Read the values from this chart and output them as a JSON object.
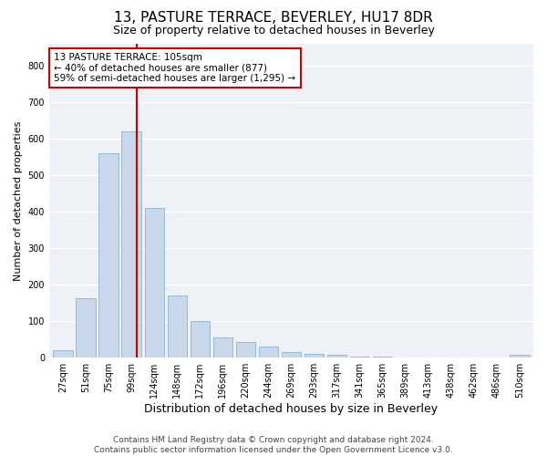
{
  "title": "13, PASTURE TERRACE, BEVERLEY, HU17 8DR",
  "subtitle": "Size of property relative to detached houses in Beverley",
  "xlabel": "Distribution of detached houses by size in Beverley",
  "ylabel": "Number of detached properties",
  "bar_color": "#c8d8ea",
  "bar_edge_color": "#8ab4cc",
  "categories": [
    "27sqm",
    "51sqm",
    "75sqm",
    "99sqm",
    "124sqm",
    "148sqm",
    "172sqm",
    "196sqm",
    "220sqm",
    "244sqm",
    "269sqm",
    "293sqm",
    "317sqm",
    "341sqm",
    "365sqm",
    "389sqm",
    "413sqm",
    "438sqm",
    "462sqm",
    "486sqm",
    "510sqm"
  ],
  "values": [
    20,
    163,
    560,
    620,
    410,
    170,
    100,
    55,
    42,
    30,
    15,
    10,
    8,
    4,
    3,
    1,
    1,
    0,
    0,
    0,
    7
  ],
  "ylim": [
    0,
    860
  ],
  "yticks": [
    0,
    100,
    200,
    300,
    400,
    500,
    600,
    700,
    800
  ],
  "vline_color": "#cc0000",
  "annotation_text": "13 PASTURE TERRACE: 105sqm\n← 40% of detached houses are smaller (877)\n59% of semi-detached houses are larger (1,295) →",
  "annotation_box_color": "#ffffff",
  "annotation_box_edge": "#cc0000",
  "footer_text": "Contains HM Land Registry data © Crown copyright and database right 2024.\nContains public sector information licensed under the Open Government Licence v3.0.",
  "background_color": "#eef2f7",
  "grid_color": "#ffffff",
  "title_fontsize": 11,
  "subtitle_fontsize": 9,
  "xlabel_fontsize": 9,
  "ylabel_fontsize": 8,
  "tick_fontsize": 7,
  "footer_fontsize": 6.5
}
